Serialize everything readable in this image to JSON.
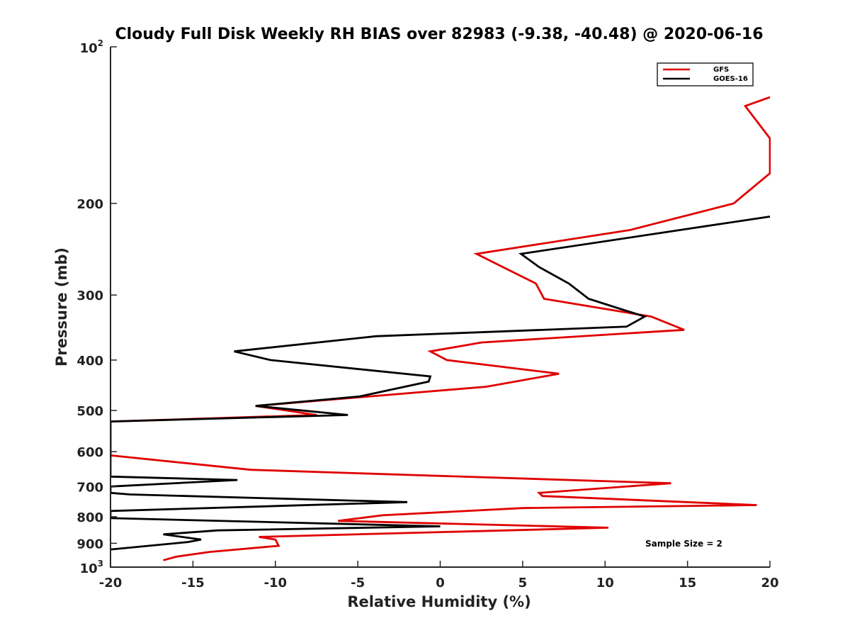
{
  "chart_data": {
    "type": "line",
    "title": "Cloudy Full Disk Weekly RH BIAS over 82983 (-9.38, -40.48) @ 2020-06-16",
    "xlabel": "Relative Humidity (%)",
    "ylabel": "Pressure (mb)",
    "xlim": [
      -20,
      20
    ],
    "ylim": [
      100,
      1000
    ],
    "yscale": "log",
    "yreversed": true,
    "grid": false,
    "legend_position": "top-right",
    "xticks": [
      -20,
      -15,
      -10,
      -5,
      0,
      5,
      10,
      15,
      20
    ],
    "xtick_labels": [
      "-20",
      "-15",
      "-10",
      "-5",
      "0",
      "5",
      "10",
      "15",
      "20"
    ],
    "yticks": [
      200,
      300,
      400,
      500,
      600,
      700,
      800,
      900
    ],
    "ytick_labels": [
      "200",
      "300",
      "400",
      "500",
      "600",
      "700",
      "800",
      "900"
    ],
    "ytick_extremes": [
      {
        "value": 100,
        "base": "10",
        "exp": "2"
      },
      {
        "value": 1000,
        "base": "10",
        "exp": "3"
      }
    ],
    "annotation": "Sample Size = 2",
    "series": [
      {
        "name": "GFS",
        "color": "#e00000",
        "points": [
          [
            20.0,
            125
          ],
          [
            18.5,
            130
          ],
          [
            20.0,
            150
          ],
          [
            20.0,
            175
          ],
          [
            17.8,
            200
          ],
          [
            11.5,
            225
          ],
          [
            2.2,
            250
          ],
          [
            3.8,
            265
          ],
          [
            5.8,
            285
          ],
          [
            6.3,
            305
          ],
          [
            12.8,
            330
          ],
          [
            14.8,
            350
          ],
          [
            2.5,
            370
          ],
          [
            -0.6,
            385
          ],
          [
            0.4,
            400
          ],
          [
            7.2,
            425
          ],
          [
            2.8,
            450
          ],
          [
            -11.2,
            490
          ],
          [
            -7.5,
            510
          ],
          [
            -20.0,
            525
          ],
          [
            -20.0,
            610
          ],
          [
            -11.5,
            650
          ],
          [
            -1.8,
            665
          ],
          [
            14.0,
            690
          ],
          [
            6.0,
            720
          ],
          [
            6.2,
            730
          ],
          [
            19.2,
            760
          ],
          [
            5.0,
            770
          ],
          [
            -3.5,
            795
          ],
          [
            -6.2,
            815
          ],
          [
            10.2,
            840
          ],
          [
            -11.0,
            875
          ],
          [
            -10.0,
            885
          ],
          [
            -9.8,
            910
          ],
          [
            -14.0,
            935
          ],
          [
            -16.0,
            955
          ],
          [
            -16.8,
            970
          ]
        ]
      },
      {
        "name": "GOES-16",
        "color": "#000000",
        "points": [
          [
            20.0,
            212
          ],
          [
            4.9,
            250
          ],
          [
            6.0,
            265
          ],
          [
            7.8,
            285
          ],
          [
            9.0,
            305
          ],
          [
            12.4,
            330
          ],
          [
            11.3,
            345
          ],
          [
            -3.9,
            360
          ],
          [
            -12.5,
            385
          ],
          [
            -10.3,
            400
          ],
          [
            -0.6,
            430
          ],
          [
            -0.7,
            440
          ],
          [
            -4.9,
            470
          ],
          [
            -11.2,
            490
          ],
          [
            -5.6,
            510
          ],
          [
            -20.0,
            525
          ],
          [
            -20.0,
            670
          ],
          [
            -12.3,
            680
          ],
          [
            -20.0,
            700
          ],
          [
            -20.0,
            720
          ],
          [
            -18.8,
            725
          ],
          [
            -2.0,
            750
          ],
          [
            -20.0,
            780
          ],
          [
            -20.0,
            805
          ],
          [
            0.0,
            835
          ],
          [
            -13.5,
            850
          ],
          [
            -16.8,
            865
          ],
          [
            -14.5,
            885
          ],
          [
            -15.3,
            895
          ],
          [
            -20.0,
            925
          ]
        ]
      }
    ]
  }
}
